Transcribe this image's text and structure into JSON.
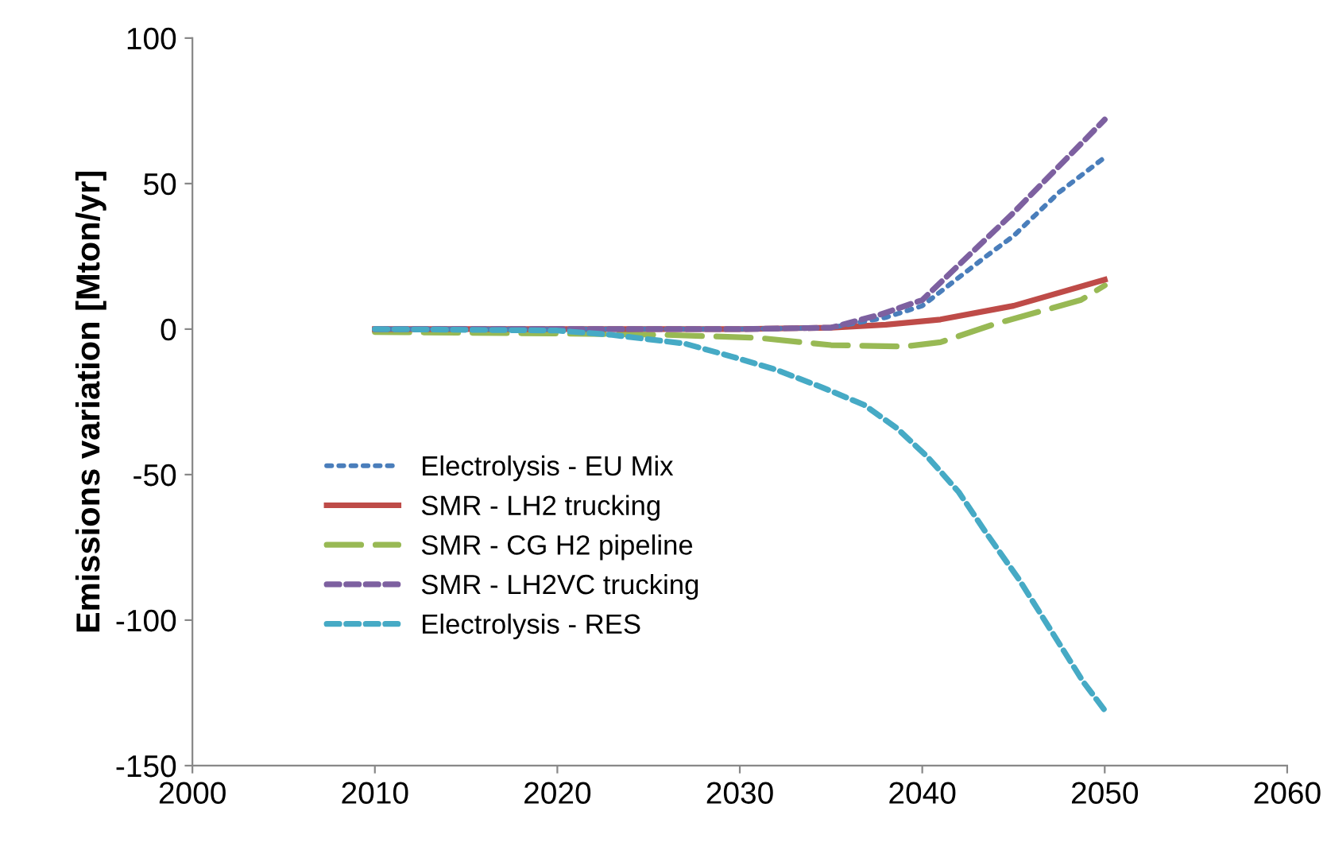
{
  "chart_data": {
    "type": "line",
    "ylabel": "Emissions variation [Mton/yr]",
    "xlim": [
      2000,
      2060
    ],
    "xticks": [
      2000,
      2010,
      2020,
      2030,
      2040,
      2050,
      2060
    ],
    "ylim": [
      -150,
      100
    ],
    "yticks": [
      -150,
      -100,
      -50,
      0,
      50,
      100
    ],
    "grid": false,
    "legend": "left",
    "marker": "none",
    "series": [
      {
        "name": "Electrolysis - EU Mix",
        "color": "#4a7ebb",
        "line_style": "dotted",
        "x": [
          2010,
          2020,
          2030,
          2035,
          2038,
          2040,
          2043.5,
          2045,
          2047.5,
          2050
        ],
        "values": [
          0,
          0,
          0,
          0.5,
          4,
          8,
          25,
          32,
          47,
          59
        ]
      },
      {
        "name": "SMR - LH2 trucking",
        "color": "#be4b48",
        "line_style": "solid",
        "x": [
          2010,
          2020,
          2030,
          2035,
          2038,
          2041,
          2045,
          2050
        ],
        "values": [
          0,
          0,
          0,
          0.5,
          1.5,
          3.3,
          8,
          17
        ]
      },
      {
        "name": "SMR - CG H2 pipeline",
        "color": "#98b954",
        "line_style": "longdash",
        "x": [
          2010,
          2020,
          2026,
          2031,
          2035,
          2039,
          2041,
          2044,
          2048.7,
          2050
        ],
        "values": [
          -1,
          -1.5,
          -2,
          -3,
          -5.5,
          -6,
          -4.5,
          1.8,
          10,
          15
        ]
      },
      {
        "name": "SMR - LH2VC trucking",
        "color": "#7d60a0",
        "line_style": "dashed",
        "x": [
          2010,
          2020,
          2030,
          2035,
          2037.7,
          2040,
          2043.5,
          2045,
          2050
        ],
        "values": [
          0,
          0,
          0,
          0.5,
          5,
          10,
          31,
          40,
          72
        ]
      },
      {
        "name": "Electrolysis - RES",
        "color": "#46aac5",
        "line_style": "dashed",
        "x": [
          2010,
          2020,
          2023,
          2027,
          2029.6,
          2032,
          2034.5,
          2036.8,
          2038.6,
          2040.3,
          2042,
          2043.5,
          2045.3,
          2047,
          2048.8,
          2050
        ],
        "values": [
          0,
          -0.5,
          -2,
          -5,
          -9.5,
          -14,
          -20,
          -26,
          -34,
          -44,
          -56,
          -70,
          -86,
          -103,
          -121,
          -131
        ]
      }
    ]
  }
}
